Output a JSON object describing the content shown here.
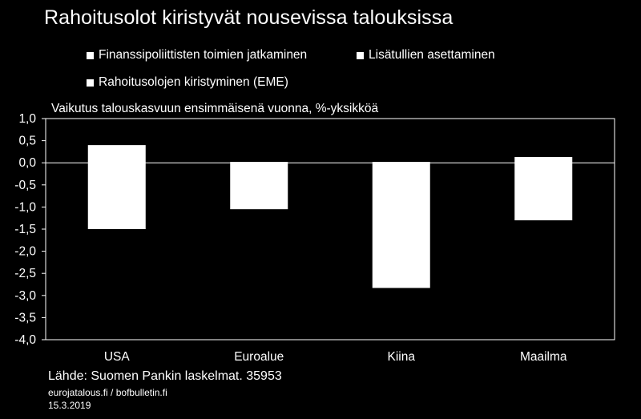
{
  "title": "Rahoitusolot kiristyvät nousevissa talouksissa",
  "legend": [
    {
      "label": "Finanssipoliittisten toimien jatkaminen",
      "color": "#ffffff"
    },
    {
      "label": "Lisätullien asettaminen",
      "color": "#ffffff"
    },
    {
      "label": "Rahoitusolojen kiristyminen (EME)",
      "color": "#ffffff"
    }
  ],
  "footer": {
    "source": "Lähde: Suomen Pankin laskelmat. 35953",
    "site": "eurojatalous.fi / bofbulletin.fi",
    "date": "15.3.2019"
  },
  "chart_data": {
    "type": "bar",
    "subtitle": "Vaikutus talouskasvuun ensimmäisenä vuonna, %-yksikköä",
    "categories": [
      "USA",
      "Euroalue",
      "Kiina",
      "Maailma"
    ],
    "bars": [
      {
        "category": "USA",
        "top": 0.4,
        "bottom": -1.5
      },
      {
        "category": "Euroalue",
        "top": 0.02,
        "bottom": -1.05
      },
      {
        "category": "Kiina",
        "top": 0.02,
        "bottom": -2.83
      },
      {
        "category": "Maailma",
        "top": 0.13,
        "bottom": -1.3
      }
    ],
    "ylim": [
      -4.0,
      1.0
    ],
    "yticks": [
      "1,0",
      "0,5",
      "0,0",
      "-0,5",
      "-1,0",
      "-1,5",
      "-2,0",
      "-2,5",
      "-3,0",
      "-3,5",
      "-4,0"
    ],
    "grid": false,
    "bar_color": "#ffffff",
    "background": "#000000",
    "axis_color": "#ffffff"
  }
}
